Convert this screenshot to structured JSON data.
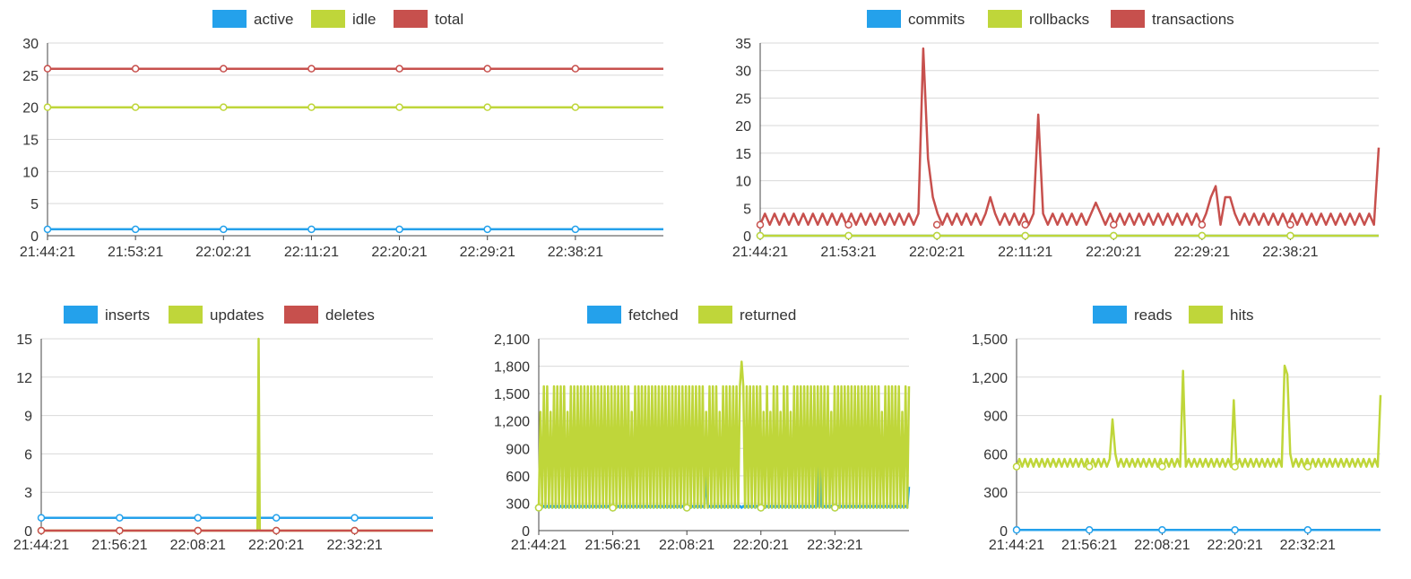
{
  "colors": {
    "blue": "#24a1eb",
    "green": "#bfd63a",
    "red": "#c7504d",
    "grid": "#d9d9d9",
    "axis": "#444444"
  },
  "chart_data": [
    {
      "id": "connections",
      "type": "line",
      "x_ticks": [
        "21:44:21",
        "21:53:21",
        "22:02:21",
        "22:11:21",
        "22:20:21",
        "22:29:21",
        "22:38:21"
      ],
      "ylim": [
        0,
        30
      ],
      "y_ticks": [
        "0",
        "5",
        "10",
        "15",
        "20",
        "25",
        "30"
      ],
      "legend": "top-center",
      "grid": true,
      "series": [
        {
          "name": "active",
          "color": "#24a1eb",
          "values": [
            1,
            1,
            1,
            1,
            1,
            1,
            1,
            1
          ]
        },
        {
          "name": "idle",
          "color": "#bfd63a",
          "values": [
            20,
            20,
            20,
            20,
            20,
            20,
            20,
            20
          ]
        },
        {
          "name": "total",
          "color": "#c7504d",
          "values": [
            26,
            26,
            26,
            26,
            26,
            26,
            26,
            26
          ]
        }
      ]
    },
    {
      "id": "transactions",
      "type": "line",
      "x_ticks": [
        "21:44:21",
        "21:53:21",
        "22:02:21",
        "22:11:21",
        "22:20:21",
        "22:29:21",
        "22:38:21"
      ],
      "ylim": [
        0,
        35
      ],
      "y_ticks": [
        "0",
        "5",
        "10",
        "15",
        "20",
        "25",
        "30",
        "35"
      ],
      "legend": "top-center",
      "grid": true,
      "series": [
        {
          "name": "commits",
          "color": "#24a1eb",
          "values": [
            0,
            0,
            0,
            0,
            0,
            0,
            0,
            0
          ]
        },
        {
          "name": "rollbacks",
          "color": "#bfd63a",
          "values": [
            0,
            0,
            0,
            0,
            0,
            0,
            0,
            0
          ]
        },
        {
          "name": "transactions",
          "color": "#c7504d",
          "baseline": [
            2,
            4
          ],
          "spikes": [
            [
              0.26,
              34
            ],
            [
              0.27,
              8
            ],
            [
              0.275,
              14
            ],
            [
              0.28,
              7
            ],
            [
              0.372,
              7
            ],
            [
              0.45,
              22
            ],
            [
              0.545,
              6
            ],
            [
              0.73,
              7
            ],
            [
              0.74,
              9
            ],
            [
              0.75,
              7
            ],
            [
              0.76,
              7
            ],
            [
              1.0,
              16
            ]
          ]
        }
      ]
    },
    {
      "id": "tuples-write",
      "type": "line",
      "x_ticks": [
        "21:44:21",
        "21:56:21",
        "22:08:21",
        "22:20:21",
        "22:32:21"
      ],
      "ylim": [
        0,
        15
      ],
      "y_ticks": [
        "0",
        "3",
        "6",
        "9",
        "12",
        "15"
      ],
      "legend": "top-center",
      "grid": true,
      "series": [
        {
          "name": "inserts",
          "color": "#24a1eb",
          "values": [
            1,
            1,
            1,
            1,
            1,
            1,
            1
          ]
        },
        {
          "name": "updates",
          "color": "#bfd63a",
          "values": [
            0,
            0,
            0,
            15,
            0,
            0,
            0
          ],
          "spike_at": 0.555
        },
        {
          "name": "deletes",
          "color": "#c7504d",
          "values": [
            0,
            0,
            0,
            0,
            0,
            0,
            0
          ]
        }
      ]
    },
    {
      "id": "tuples-read",
      "type": "line",
      "x_ticks": [
        "21:44:21",
        "21:56:21",
        "22:08:21",
        "22:20:21",
        "22:32:21"
      ],
      "ylim": [
        0,
        2100
      ],
      "y_ticks": [
        "0",
        "300",
        "600",
        "900",
        "1,200",
        "1,500",
        "1,800",
        "2,100"
      ],
      "legend": "top-center",
      "grid": true,
      "series": [
        {
          "name": "fetched",
          "color": "#24a1eb",
          "baseline": [
            250,
            270
          ],
          "spikes": [
            [
              0.45,
              620
            ],
            [
              0.76,
              1080
            ],
            [
              1.0,
              480
            ]
          ]
        },
        {
          "name": "returned",
          "color": "#bfd63a",
          "baseline": [
            250,
            1580
          ],
          "spikes": [
            [
              0.55,
              1850
            ]
          ]
        }
      ]
    },
    {
      "id": "blocks",
      "type": "line",
      "x_ticks": [
        "21:44:21",
        "21:56:21",
        "22:08:21",
        "22:20:21",
        "22:32:21"
      ],
      "ylim": [
        0,
        1500
      ],
      "y_ticks": [
        "0",
        "300",
        "600",
        "900",
        "1,200",
        "1,500"
      ],
      "legend": "top-center",
      "grid": true,
      "series": [
        {
          "name": "reads",
          "color": "#24a1eb",
          "values": [
            5,
            5,
            5,
            5,
            5,
            5,
            5
          ]
        },
        {
          "name": "hits",
          "color": "#bfd63a",
          "baseline": [
            500,
            560
          ],
          "spikes": [
            [
              0.26,
              870
            ],
            [
              0.27,
              600
            ],
            [
              0.46,
              1250
            ],
            [
              0.6,
              1020
            ],
            [
              0.735,
              1290
            ],
            [
              0.745,
              1220
            ],
            [
              0.75,
              600
            ],
            [
              1.0,
              1060
            ]
          ]
        }
      ]
    }
  ]
}
